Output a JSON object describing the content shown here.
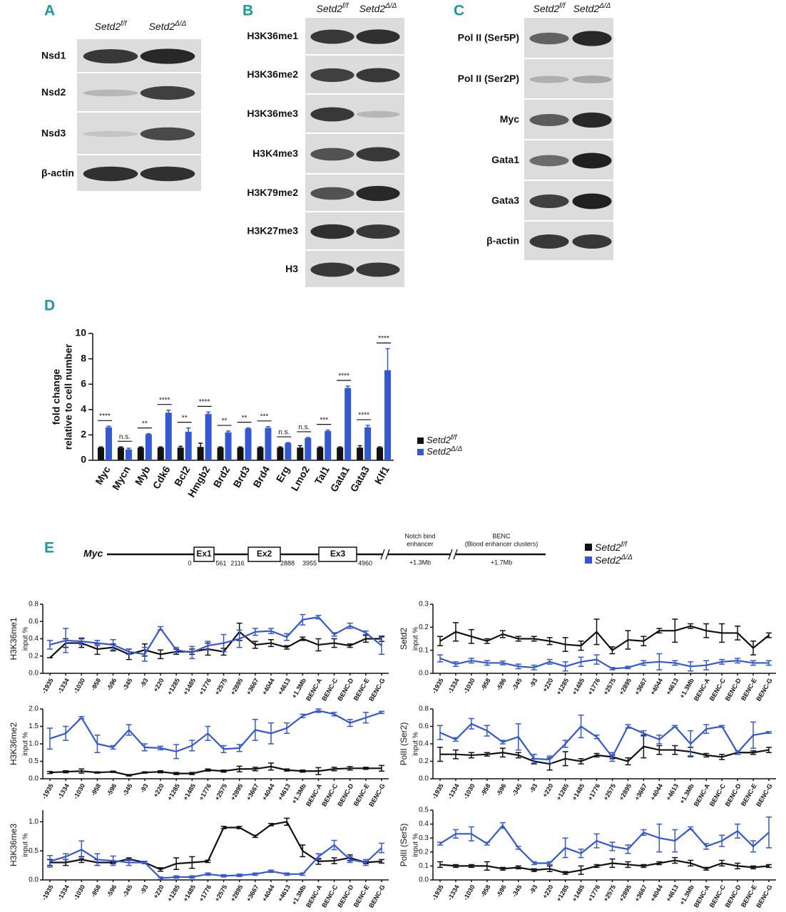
{
  "figure": {
    "panels": [
      {
        "label": "A",
        "rows": [
          "Nsd1",
          "Nsd2",
          "Nsd3",
          "β-actin"
        ]
      },
      {
        "label": "B",
        "rows": [
          "H3K36me1",
          "H3K36me2",
          "H3K36me3",
          "H3K4me3",
          "H3K79me2",
          "H3K27me3",
          "H3"
        ]
      },
      {
        "label": "C",
        "rows": [
          "Pol II (Ser5P)",
          "Pol II (Ser2P)",
          "Myc",
          "Gata1",
          "Gata3",
          "β-actin"
        ]
      },
      {
        "label": "D"
      },
      {
        "label": "E"
      }
    ],
    "genotypes": [
      {
        "name": "Setd2",
        "sup": "f/f"
      },
      {
        "name": "Setd2",
        "sup": "Δ/Δ"
      }
    ],
    "gene_map": {
      "gene": "Myc",
      "exons": [
        "Ex1",
        "Ex2",
        "Ex3"
      ],
      "coordinates": [
        "0",
        "561",
        "2116",
        "2888",
        "3955",
        "4960"
      ],
      "notch": {
        "label": [
          "Notch bind",
          "enhancer"
        ],
        "position": "+1.3Mb"
      },
      "benc": {
        "label": [
          "BENC",
          "(Blood enhancer clusters)"
        ],
        "position": "+1.7Mb"
      }
    }
  },
  "chart_data": [
    {
      "type": "bar",
      "ylabel": [
        "fold change",
        "relative to cell number"
      ],
      "categories": [
        "Myc",
        "Mycn",
        "Myb",
        "Cdk6",
        "Bcl2",
        "Hmgb2",
        "Brd2",
        "Brd3",
        "Brd4",
        "Erg",
        "Lmo2",
        "Tal1",
        "Gata1",
        "Gata3",
        "Klf1"
      ],
      "significance": [
        "****",
        "n.s.",
        "**",
        "****",
        "**",
        "****",
        "**",
        "**",
        "***",
        "n.s.",
        "n.s.",
        "***",
        "****",
        "****",
        "****"
      ],
      "ylim": [
        0,
        10
      ],
      "yticks": [
        0,
        2,
        4,
        6,
        8,
        10
      ],
      "series": [
        {
          "name": "Setd2",
          "sup": "f/f",
          "color": "#111111",
          "values": [
            1,
            1,
            1,
            1,
            1,
            1.05,
            1,
            1,
            1,
            1,
            1,
            1,
            1,
            1,
            1
          ],
          "errors": [
            0.05,
            0.05,
            0.05,
            0.05,
            0.1,
            0.3,
            0.05,
            0.05,
            0.05,
            0.05,
            0.15,
            0.05,
            0.05,
            0.15,
            0.05
          ]
        },
        {
          "name": "Setd2",
          "sup": "Δ/Δ",
          "color": "#3358d6",
          "values": [
            2.6,
            0.85,
            2.05,
            3.75,
            2.25,
            3.65,
            2.2,
            2.5,
            2.55,
            1.35,
            1.75,
            2.3,
            5.7,
            2.6,
            7.1
          ],
          "errors": [
            0.08,
            0.1,
            0.05,
            0.2,
            0.3,
            0.15,
            0.1,
            0.05,
            0.1,
            0.05,
            0.05,
            0.08,
            0.15,
            0.15,
            1.7
          ]
        }
      ]
    },
    {
      "type": "line",
      "ylabel": [
        "H3K36me1",
        "input %"
      ],
      "categories": [
        "-1935",
        "-1334",
        "-1030",
        "-958",
        "-596",
        "-345",
        "-93",
        "+220",
        "+1285",
        "+1485",
        "+1776",
        "+2575",
        "+2895",
        "+3667",
        "+4044",
        "+4613",
        "+1.3Mb",
        "BENC-A",
        "BENC-C",
        "BENC-D",
        "BENC-E",
        "BENC-G"
      ],
      "ylim": [
        0,
        0.8
      ],
      "yticks": [
        {
          "value": 0,
          "label": "0.0"
        },
        0.2,
        0.4,
        0.6,
        0.8
      ],
      "series": [
        {
          "name": "Setd2",
          "sup": "f/f",
          "color": "#111111",
          "values": [
            0.18,
            0.35,
            0.35,
            0.28,
            0.3,
            0.22,
            0.27,
            0.22,
            0.25,
            0.25,
            0.28,
            0.25,
            0.48,
            0.33,
            0.35,
            0.3,
            0.4,
            0.33,
            0.35,
            0.32,
            0.4,
            0.4
          ],
          "errors": [
            0,
            0.05,
            0.05,
            0.06,
            0.04,
            0.06,
            0.07,
            0.05,
            0.03,
            0.03,
            0.07,
            0.04,
            0.1,
            0.04,
            0.04,
            0.02,
            0.02,
            0.07,
            0.05,
            0.02,
            0.04,
            0.03
          ]
        },
        {
          "name": "Setd2",
          "sup": "Δ/Δ",
          "color": "#3358d6",
          "values": [
            0.33,
            0.38,
            0.37,
            0.35,
            0.33,
            0.25,
            0.22,
            0.52,
            0.27,
            0.24,
            0.32,
            0.35,
            0.4,
            0.48,
            0.49,
            0.42,
            0.62,
            0.65,
            0.45,
            0.55,
            0.47,
            0.32
          ],
          "errors": [
            0.05,
            0.14,
            0.04,
            0.03,
            0.06,
            0.03,
            0.08,
            0.02,
            0.03,
            0.07,
            0.05,
            0.1,
            0.1,
            0.04,
            0.03,
            0.04,
            0.06,
            0.02,
            0.02,
            0.03,
            0.02,
            0.1
          ]
        }
      ]
    },
    {
      "type": "line",
      "ylabel": [
        "Setd2",
        "input %"
      ],
      "categories": [
        "-1935",
        "-1334",
        "-1030",
        "-958",
        "-596",
        "-345",
        "-93",
        "+220",
        "+1285",
        "+1485",
        "+1776",
        "+2575",
        "+2895",
        "+3667",
        "+4044",
        "+4613",
        "+1.3Mb",
        "BENC-A",
        "BENC-C",
        "BENC-D",
        "BENC-E",
        "BENC-G"
      ],
      "ylim": [
        0,
        0.3
      ],
      "yticks": [
        {
          "value": 0,
          "label": "0.0"
        },
        0.1,
        0.2,
        0.3
      ],
      "series": [
        {
          "color": "#111111",
          "values": [
            0.14,
            0.18,
            0.16,
            0.14,
            0.17,
            0.15,
            0.15,
            0.14,
            0.125,
            0.12,
            0.18,
            0.1,
            0.145,
            0.14,
            0.185,
            0.185,
            0.205,
            0.185,
            0.175,
            0.175,
            0.11,
            0.165
          ],
          "errors": [
            0.02,
            0.04,
            0.03,
            0.01,
            0.015,
            0.01,
            0.01,
            0.015,
            0.03,
            0.02,
            0.055,
            0.015,
            0.04,
            0.02,
            0.01,
            0.05,
            0.01,
            0.03,
            0.04,
            0.03,
            0.03,
            0.01
          ]
        },
        {
          "color": "#3358d6",
          "values": [
            0.065,
            0.04,
            0.055,
            0.045,
            0.045,
            0.03,
            0.025,
            0.05,
            0.03,
            0.05,
            0.06,
            0.02,
            0.025,
            0.045,
            0.05,
            0.045,
            0.03,
            0.035,
            0.05,
            0.055,
            0.045,
            0.045
          ],
          "errors": [
            0.015,
            0.01,
            0.01,
            0.01,
            0.008,
            0.01,
            0.01,
            0.01,
            0.02,
            0.02,
            0.02,
            0.005,
            0.005,
            0.01,
            0.035,
            0.01,
            0.02,
            0.02,
            0.01,
            0.01,
            0.01,
            0.01
          ]
        }
      ]
    },
    {
      "type": "line",
      "ylabel": [
        "H3K36me2",
        "input %"
      ],
      "categories": [
        "-1935",
        "-1334",
        "-1030",
        "-958",
        "-596",
        "-345",
        "-93",
        "+220",
        "+1285",
        "+1485",
        "+1776",
        "+2575",
        "+2895",
        "+3667",
        "+4044",
        "+4613",
        "+1.3Mb",
        "BENC-A",
        "BENC-C",
        "BENC-D",
        "BENC-E",
        "BENC-G"
      ],
      "ylim": [
        0,
        2
      ],
      "yticks": [
        {
          "value": 0,
          "label": "0.0"
        },
        0.5,
        {
          "value": 1,
          "label": "1.0"
        },
        1.5,
        {
          "value": 2,
          "label": "2.0"
        }
      ],
      "series": [
        {
          "color": "#111111",
          "values": [
            0.18,
            0.2,
            0.22,
            0.18,
            0.2,
            0.1,
            0.18,
            0.2,
            0.15,
            0.15,
            0.25,
            0.22,
            0.28,
            0.28,
            0.35,
            0.25,
            0.22,
            0.22,
            0.28,
            0.3,
            0.3,
            0.3
          ],
          "errors": [
            0.03,
            0.03,
            0.06,
            0.02,
            0.02,
            0.02,
            0.02,
            0.03,
            0.03,
            0.03,
            0.03,
            0.03,
            0.08,
            0.05,
            0.1,
            0.03,
            0.03,
            0.1,
            0.05,
            0.05,
            0.03,
            0.08
          ]
        },
        {
          "color": "#3358d6",
          "values": [
            1.15,
            1.3,
            1.75,
            1.0,
            0.9,
            1.4,
            0.9,
            0.88,
            0.78,
            0.95,
            1.3,
            0.85,
            0.88,
            1.4,
            1.3,
            1.45,
            1.8,
            1.95,
            1.85,
            1.6,
            1.75,
            1.9
          ],
          "errors": [
            0.3,
            0.2,
            0.03,
            0.25,
            0.05,
            0.15,
            0.1,
            0.05,
            0.2,
            0.15,
            0.2,
            0.1,
            0.1,
            0.3,
            0.3,
            0.15,
            0.05,
            0.05,
            0.05,
            0.1,
            0.15,
            0.03
          ]
        }
      ]
    },
    {
      "type": "line",
      "ylabel": [
        "PolII (Ser2)",
        "input %"
      ],
      "categories": [
        "-1935",
        "-1334",
        "-1030",
        "-958",
        "-596",
        "-345",
        "-93",
        "+220",
        "+1285",
        "+1485",
        "+1776",
        "+2575",
        "+2895",
        "+3667",
        "+4044",
        "+4613",
        "+1.3Mb",
        "BENC-A",
        "BENC-C",
        "BENC-D",
        "BENC-E",
        "BENC-G"
      ],
      "ylim": [
        0,
        0.8
      ],
      "yticks": [
        {
          "value": 0,
          "label": "0.0"
        },
        0.2,
        0.4,
        0.6,
        0.8
      ],
      "series": [
        {
          "color": "#111111",
          "values": [
            0.28,
            0.28,
            0.27,
            0.28,
            0.3,
            0.27,
            0.2,
            0.17,
            0.23,
            0.2,
            0.27,
            0.25,
            0.2,
            0.37,
            0.33,
            0.33,
            0.31,
            0.27,
            0.25,
            0.3,
            0.3,
            0.33
          ],
          "errors": [
            0.08,
            0.05,
            0.03,
            0.02,
            0.05,
            0.03,
            0.03,
            0.07,
            0.08,
            0.03,
            0.02,
            0.02,
            0.04,
            0.13,
            0.05,
            0.05,
            0.05,
            0.02,
            0.03,
            0.02,
            0.02,
            0.03
          ]
        },
        {
          "color": "#3358d6",
          "values": [
            0.53,
            0.45,
            0.63,
            0.55,
            0.42,
            0.48,
            0.23,
            0.22,
            0.4,
            0.6,
            0.48,
            0.25,
            0.6,
            0.52,
            0.45,
            0.6,
            0.4,
            0.57,
            0.6,
            0.3,
            0.5,
            0.53
          ],
          "errors": [
            0.08,
            0.02,
            0.06,
            0.06,
            0.02,
            0.15,
            0.05,
            0.04,
            0.04,
            0.13,
            0.02,
            0.05,
            0.02,
            0.03,
            0.05,
            0.01,
            0.15,
            0.05,
            0.01,
            0.02,
            0.15,
            0.01
          ]
        }
      ]
    },
    {
      "type": "line",
      "ylabel": [
        "H3K36me3",
        "input %"
      ],
      "categories": [
        "-1935",
        "-1334",
        "-1030",
        "-958",
        "-596",
        "-345",
        "-93",
        "+220",
        "+1285",
        "+1485",
        "+1776",
        "+2575",
        "+2895",
        "+3667",
        "+4044",
        "+4613",
        "+1.3Mb",
        "BENC-A",
        "BENC-C",
        "BENC-D",
        "BENC-E",
        "BENC-G"
      ],
      "ylim": [
        0,
        1.2
      ],
      "yticks": [
        {
          "value": 0,
          "label": "0.0"
        },
        0.5,
        {
          "value": 1,
          "label": "1.0"
        }
      ],
      "series": [
        {
          "color": "#111111",
          "values": [
            0.3,
            0.3,
            0.35,
            0.3,
            0.3,
            0.36,
            0.3,
            0.18,
            0.28,
            0.3,
            0.32,
            0.9,
            0.9,
            0.75,
            0.95,
            1.0,
            0.5,
            0.32,
            0.33,
            0.38,
            0.3,
            0.32
          ],
          "errors": [
            0.05,
            0.05,
            0.05,
            0.05,
            0.02,
            0.02,
            0.02,
            0.03,
            0.1,
            0.1,
            0.02,
            0.02,
            0.02,
            0.02,
            0.02,
            0.06,
            0.1,
            0.05,
            0.05,
            0.05,
            0.02,
            0.03
          ]
        },
        {
          "color": "#3358d6",
          "values": [
            0.32,
            0.4,
            0.52,
            0.35,
            0.33,
            0.3,
            0.3,
            0.03,
            0.05,
            0.05,
            0.1,
            0.07,
            0.08,
            0.1,
            0.15,
            0.1,
            0.1,
            0.4,
            0.6,
            0.35,
            0.3,
            0.55
          ],
          "errors": [
            0.1,
            0.05,
            0.15,
            0.1,
            0.08,
            0.05,
            0.02,
            0.02,
            0.02,
            0.02,
            0.02,
            0.02,
            0.02,
            0.02,
            0.02,
            0.02,
            0.02,
            0.05,
            0.08,
            0.05,
            0.05,
            0.08
          ]
        }
      ]
    },
    {
      "type": "line",
      "ylabel": [
        "PolII (Ser5)",
        "input %"
      ],
      "categories": [
        "-1935",
        "-1334",
        "-1030",
        "-958",
        "-596",
        "-345",
        "-93",
        "+220",
        "+1285",
        "+1485",
        "+1776",
        "+2575",
        "+2895",
        "+3667",
        "+4044",
        "+4613",
        "+1.3Mb",
        "BENC-A",
        "BENC-C",
        "BENC-D",
        "BENC-E",
        "BENC-G"
      ],
      "ylim": [
        0,
        0.5
      ],
      "yticks": [
        {
          "value": 0,
          "label": "0.0"
        },
        0.1,
        0.2,
        0.3,
        0.4,
        0.5
      ],
      "series": [
        {
          "color": "#111111",
          "values": [
            0.11,
            0.1,
            0.1,
            0.1,
            0.08,
            0.09,
            0.07,
            0.08,
            0.05,
            0.07,
            0.1,
            0.12,
            0.11,
            0.1,
            0.12,
            0.14,
            0.12,
            0.08,
            0.12,
            0.1,
            0.09,
            0.1
          ],
          "errors": [
            0.02,
            0.01,
            0.01,
            0.03,
            0.01,
            0.01,
            0.01,
            0.02,
            0.01,
            0.03,
            0.01,
            0.03,
            0.02,
            0.01,
            0.01,
            0.02,
            0.02,
            0.01,
            0.02,
            0.02,
            0.01,
            0.01
          ]
        },
        {
          "color": "#3358d6",
          "values": [
            0.26,
            0.33,
            0.33,
            0.26,
            0.39,
            0.23,
            0.12,
            0.12,
            0.23,
            0.19,
            0.28,
            0.24,
            0.22,
            0.34,
            0.3,
            0.28,
            0.37,
            0.24,
            0.28,
            0.35,
            0.24,
            0.34
          ],
          "errors": [
            0.01,
            0.03,
            0.05,
            0.01,
            0.02,
            0.01,
            0.01,
            0.01,
            0.07,
            0.03,
            0.05,
            0.03,
            0.03,
            0.02,
            0.1,
            0.08,
            0.01,
            0.02,
            0.04,
            0.05,
            0.04,
            0.11
          ]
        }
      ]
    }
  ]
}
